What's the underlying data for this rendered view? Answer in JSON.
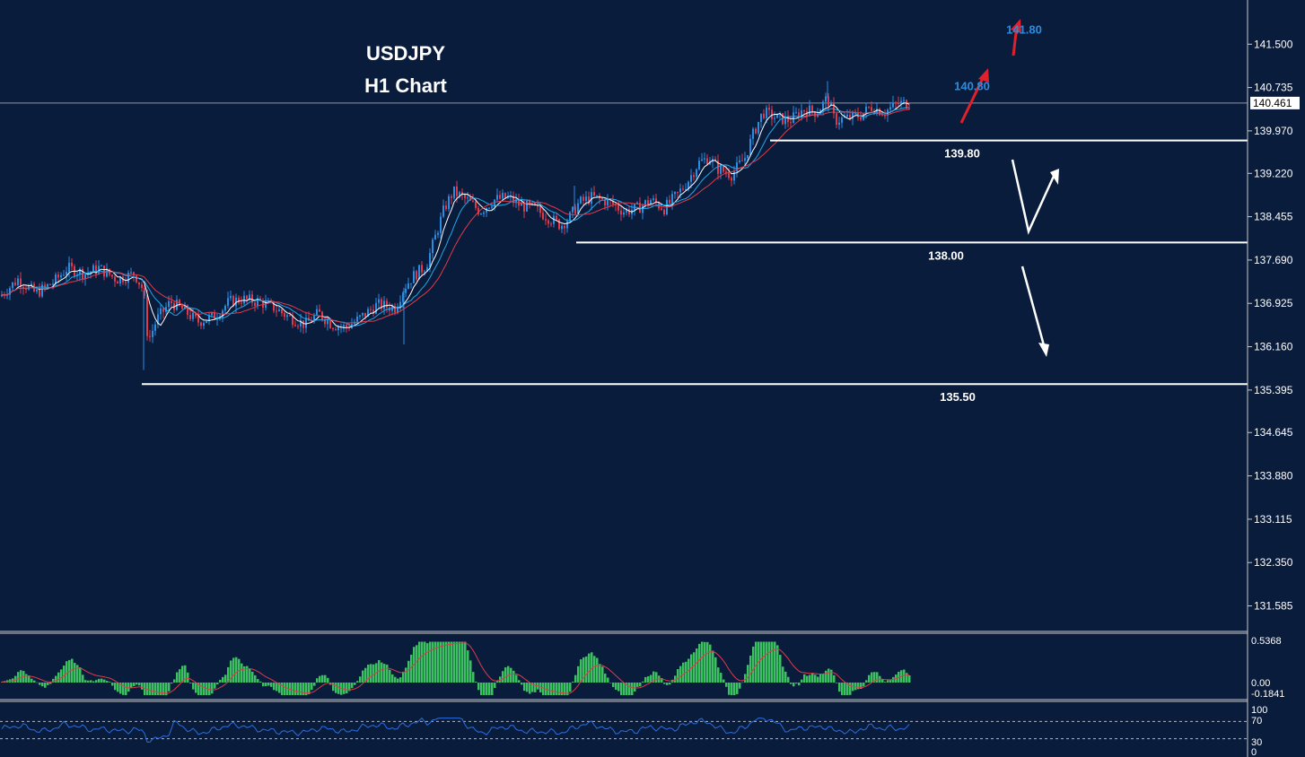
{
  "chart_data": {
    "type": "candlestick",
    "title": "USDJPY",
    "subtitle": "H1 Chart",
    "current_price": "140.461",
    "y_ticks": [
      "141.500",
      "140.735",
      "139.970",
      "139.220",
      "138.455",
      "137.690",
      "136.925",
      "136.160",
      "135.395",
      "134.645",
      "133.880",
      "133.115",
      "132.350",
      "131.585"
    ],
    "ylim": [
      131.15,
      142.28
    ],
    "levels": [
      {
        "label": "139.80",
        "value": 139.8
      },
      {
        "label": "138.00",
        "value": 138.0
      },
      {
        "label": "135.50",
        "value": 135.5
      }
    ],
    "targets": [
      {
        "label": "140.80",
        "value": 140.8
      },
      {
        "label": "141.80",
        "value": 141.8
      }
    ],
    "macd": {
      "ticks": [
        "0.5368",
        "0.00",
        "-0.1841"
      ],
      "ylim": [
        -0.28,
        0.56
      ]
    },
    "rsi": {
      "ticks": [
        "100",
        "70",
        "30",
        "0"
      ],
      "levels": [
        70,
        30
      ],
      "ylim": [
        0,
        100
      ]
    },
    "price_path": [
      [
        0,
        137.05
      ],
      [
        20,
        137.35
      ],
      [
        40,
        137.1
      ],
      [
        60,
        137.3
      ],
      [
        75,
        137.55
      ],
      [
        95,
        137.45
      ],
      [
        110,
        137.55
      ],
      [
        130,
        137.35
      ],
      [
        150,
        137.45
      ],
      [
        160,
        137.15
      ],
      [
        165,
        136.25
      ],
      [
        175,
        136.65
      ],
      [
        190,
        136.95
      ],
      [
        205,
        136.8
      ],
      [
        220,
        136.6
      ],
      [
        240,
        136.7
      ],
      [
        255,
        136.95
      ],
      [
        270,
        137.0
      ],
      [
        290,
        136.95
      ],
      [
        305,
        136.85
      ],
      [
        320,
        136.7
      ],
      [
        340,
        136.55
      ],
      [
        355,
        136.75
      ],
      [
        370,
        136.55
      ],
      [
        385,
        136.5
      ],
      [
        400,
        136.65
      ],
      [
        420,
        136.9
      ],
      [
        440,
        136.85
      ],
      [
        450,
        137.2
      ],
      [
        460,
        137.4
      ],
      [
        475,
        137.6
      ],
      [
        485,
        138.1
      ],
      [
        495,
        138.6
      ],
      [
        505,
        138.9
      ],
      [
        520,
        138.75
      ],
      [
        535,
        138.55
      ],
      [
        550,
        138.75
      ],
      [
        565,
        138.8
      ],
      [
        580,
        138.65
      ],
      [
        595,
        138.6
      ],
      [
        610,
        138.45
      ],
      [
        625,
        138.3
      ],
      [
        635,
        138.45
      ],
      [
        645,
        138.7
      ],
      [
        660,
        138.8
      ],
      [
        680,
        138.7
      ],
      [
        695,
        138.55
      ],
      [
        710,
        138.6
      ],
      [
        725,
        138.75
      ],
      [
        740,
        138.6
      ],
      [
        755,
        138.85
      ],
      [
        765,
        139.05
      ],
      [
        778,
        139.4
      ],
      [
        790,
        139.5
      ],
      [
        800,
        139.3
      ],
      [
        815,
        139.2
      ],
      [
        830,
        139.5
      ],
      [
        840,
        139.95
      ],
      [
        850,
        140.3
      ],
      [
        865,
        140.2
      ],
      [
        880,
        140.15
      ],
      [
        895,
        140.35
      ],
      [
        910,
        140.3
      ],
      [
        922,
        140.55
      ],
      [
        930,
        140.15
      ],
      [
        945,
        140.2
      ],
      [
        960,
        140.25
      ],
      [
        970,
        140.4
      ],
      [
        985,
        140.3
      ],
      [
        1000,
        140.45
      ],
      [
        1015,
        140.46
      ]
    ]
  }
}
